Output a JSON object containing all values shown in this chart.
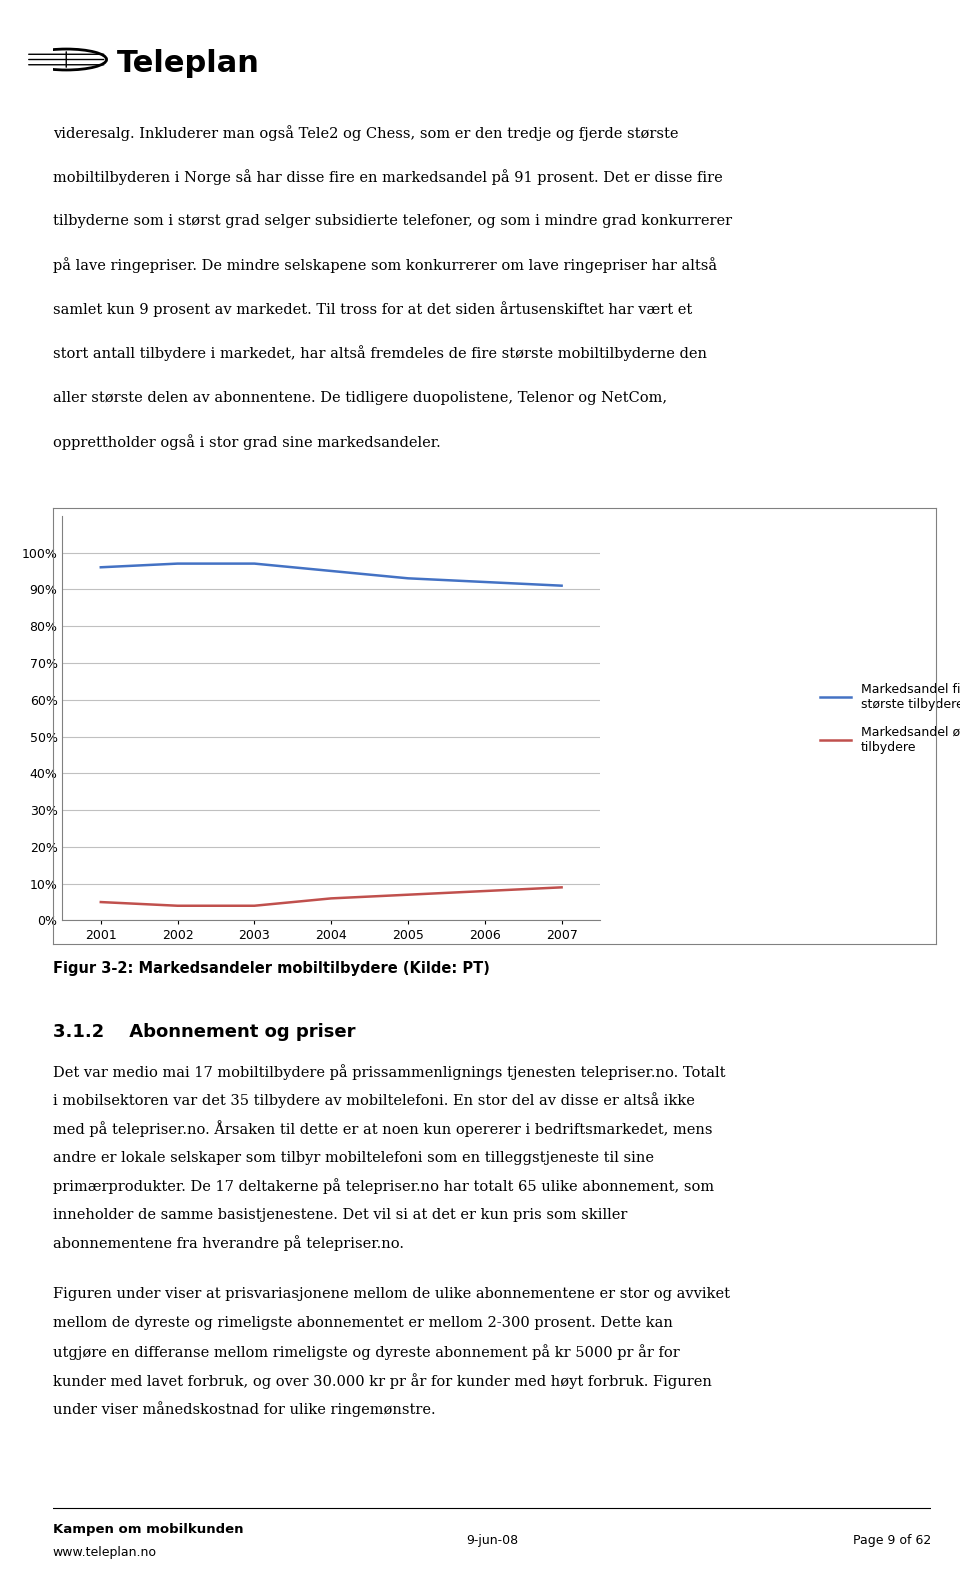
{
  "page_bg": "#ffffff",
  "header_logo_text": "Teleplan",
  "para1": "videresalg. Inkluderer man også Tele2 og Chess, som er den tredje og fjerde største\nmobiltilbyderen i Norge så har disse fire en markedsandel på 91 prosent. Det er disse fire\ntilbyderne som i størst grad selger subsidierte telefoner, og som i mindre grad konkurrerer\npå lave ringepriser. De mindre selskapene som konkurrerer om lave ringepriser har altså\nsamlet kun 9 prosent av markedet. Til tross for at det siden årtusenskiftet har vært et\nstort antall tilbydere i markedet, har altså fremdeles de fire største mobiltilbyderne den\naller største delen av abonnentene. De tidligere duopolistene, Telenor og NetCom,\nopprettholder også i stor grad sine markedsandeler.",
  "chart_years": [
    2001,
    2002,
    2003,
    2004,
    2005,
    2006,
    2007
  ],
  "series1_values": [
    96,
    97,
    97,
    95,
    93,
    92,
    91
  ],
  "series2_values": [
    5,
    4,
    4,
    6,
    7,
    8,
    9
  ],
  "series1_label": "Markedsandel fire\nstørste tilbydere",
  "series2_label": "Markedsandel øvrige\ntilbydere",
  "series1_color": "#4472C4",
  "series2_color": "#C0504D",
  "chart_yticks": [
    0,
    10,
    20,
    30,
    40,
    50,
    60,
    70,
    80,
    90,
    100
  ],
  "chart_ytick_labels": [
    "0%",
    "10%",
    "20%",
    "30%",
    "40%",
    "50%",
    "60%",
    "70%",
    "80%",
    "90%",
    "100%"
  ],
  "fig_caption": "Figur 3-2: Markedsandeler mobiltilbydere (Kilde: PT)",
  "section_title": "3.1.2    Abonnement og priser",
  "para2": "Det var medio mai 17 mobiltilbydere på prissammenlignings tjenesten telepriser.no. Totalt\ni mobilsektoren var det 35 tilbydere av mobiltelefoni. En stor del av disse er altså ikke\nmed på telepriser.no. Årsaken til dette er at noen kun opererer i bedriftsmarkedet, mens\nandre er lokale selskaper som tilbyr mobiltelefoni som en tilleggstjeneste til sine\nprimærprodukter. De 17 deltakerne på telepriser.no har totalt 65 ulike abonnement, som\ninneholder de samme basistjenestene. Det vil si at det er kun pris som skiller\nabonnementene fra hverandre på telepriser.no.",
  "para3": "Figuren under viser at prisvariasjonene mellom de ulike abonnementene er stor og avviket\nmellom de dyreste og rimeligste abonnementet er mellom 2-300 prosent. Dette kan\nutgjøre en differanse mellom rimeligste og dyreste abonnement på kr 5000 pr år for\nkunder med lavet forbruk, og over 30.000 kr pr år for kunder med høyt forbruk. Figuren\nunder viser månedskostnad for ulike ringemønstre.",
  "footer_left": "Kampen om mobilkunden",
  "footer_left2": "www.teleplan.no",
  "footer_center": "9-jun-08",
  "footer_right": "Page 9 of 62",
  "text_color": "#000000",
  "grid_color": "#C0C0C0"
}
